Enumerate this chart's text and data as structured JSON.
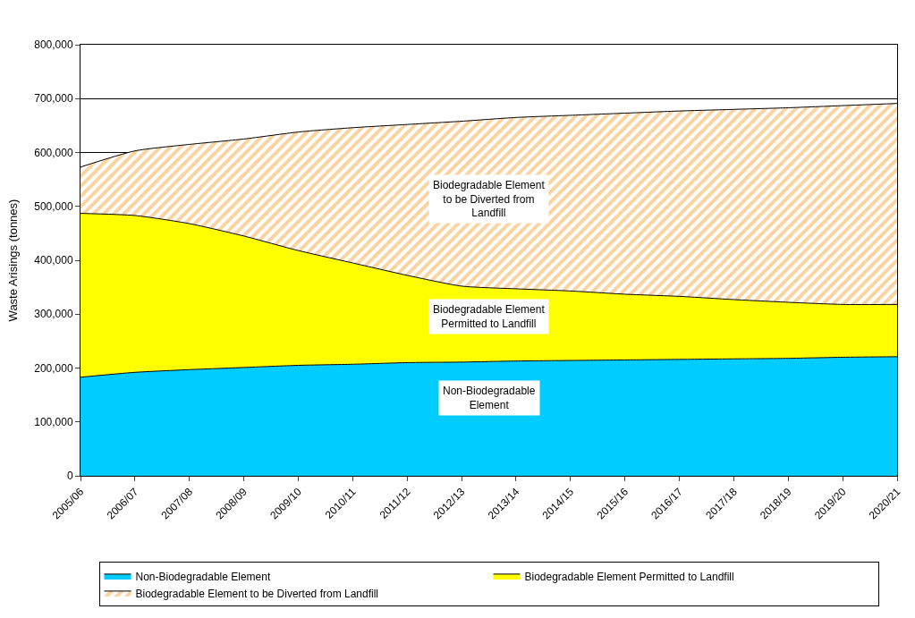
{
  "chart_data": {
    "type": "area",
    "stacked": true,
    "ylabel": "Waste Arisings (tonnes)",
    "categories": [
      "2005/06",
      "2006/07",
      "2007/08",
      "2008/09",
      "2009/10",
      "2010/11",
      "2011/12",
      "2012/13",
      "2013/14",
      "2014/15",
      "2015/16",
      "2016/17",
      "2017/18",
      "2018/19",
      "2019/20",
      "2020/21"
    ],
    "series": [
      {
        "name": "Non-Biodegradable Element",
        "color": "#00ccff",
        "values": [
          183000,
          192000,
          197000,
          201000,
          205000,
          207000,
          210000,
          211000,
          213000,
          214000,
          215000,
          216000,
          217000,
          218000,
          220000,
          221000
        ]
      },
      {
        "name": "Biodegradable Element Permitted to Landfill",
        "color": "#ffff00",
        "values": [
          304000,
          291000,
          271000,
          244000,
          213000,
          188000,
          162000,
          141000,
          134000,
          129000,
          122000,
          117000,
          110000,
          104000,
          98000,
          97000
        ]
      },
      {
        "name": "Biodegradable Element to be Diverted from Landfill",
        "color": "#f4a742",
        "values": [
          86000,
          120000,
          147000,
          180000,
          220000,
          251000,
          280000,
          306000,
          318000,
          326000,
          336000,
          344000,
          353000,
          361000,
          369000,
          373000
        ]
      }
    ],
    "ylim": [
      0,
      800000
    ],
    "yticks": [
      {
        "value": 0,
        "label": "0"
      },
      {
        "value": 100000,
        "label": "100,000"
      },
      {
        "value": 200000,
        "label": "200,000"
      },
      {
        "value": 300000,
        "label": "300,000"
      },
      {
        "value": 400000,
        "label": "400,000"
      },
      {
        "value": 500000,
        "label": "500,000"
      },
      {
        "value": 600000,
        "label": "600,000"
      },
      {
        "value": 700000,
        "label": "700,000"
      },
      {
        "value": 800000,
        "label": "800,000"
      }
    ],
    "annotations": [
      "Biodegradable Element\nto be Diverted from\nLandfill",
      "Biodegradable Element\nPermitted to Landfill",
      "Non-Biodegradable\nElement"
    ],
    "grid": "y",
    "legend": "bottom"
  }
}
